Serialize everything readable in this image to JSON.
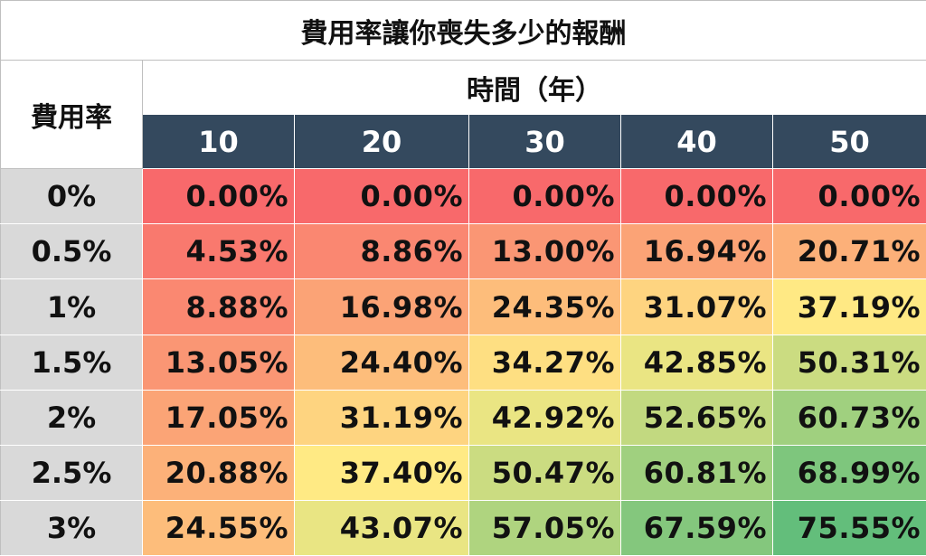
{
  "chart_data": {
    "type": "table",
    "title": "費用率讓你喪失多少的報酬",
    "row_header_label": "費用率",
    "column_group_label": "時間（年）",
    "columns": [
      "10",
      "20",
      "30",
      "40",
      "50"
    ],
    "rows": [
      {
        "rate": "0%",
        "values": [
          "0.00%",
          "0.00%",
          "0.00%",
          "0.00%",
          "0.00%"
        ]
      },
      {
        "rate": "0.5%",
        "values": [
          "4.53%",
          "8.86%",
          "13.00%",
          "16.94%",
          "20.71%"
        ]
      },
      {
        "rate": "1%",
        "values": [
          "8.88%",
          "16.98%",
          "24.35%",
          "31.07%",
          "37.19%"
        ]
      },
      {
        "rate": "1.5%",
        "values": [
          "13.05%",
          "24.40%",
          "34.27%",
          "42.85%",
          "50.31%"
        ]
      },
      {
        "rate": "2%",
        "values": [
          "17.05%",
          "31.19%",
          "42.92%",
          "52.65%",
          "60.73%"
        ]
      },
      {
        "rate": "2.5%",
        "values": [
          "20.88%",
          "37.40%",
          "50.47%",
          "60.81%",
          "68.99%"
        ]
      },
      {
        "rate": "3%",
        "values": [
          "24.55%",
          "43.07%",
          "57.05%",
          "67.59%",
          "75.55%"
        ]
      }
    ],
    "color_scale": {
      "low": "#f8696b",
      "mid": "#ffeb84",
      "high": "#63be7b",
      "header_dark": "#34495e",
      "row_label_bg": "#d9d9d9"
    }
  }
}
